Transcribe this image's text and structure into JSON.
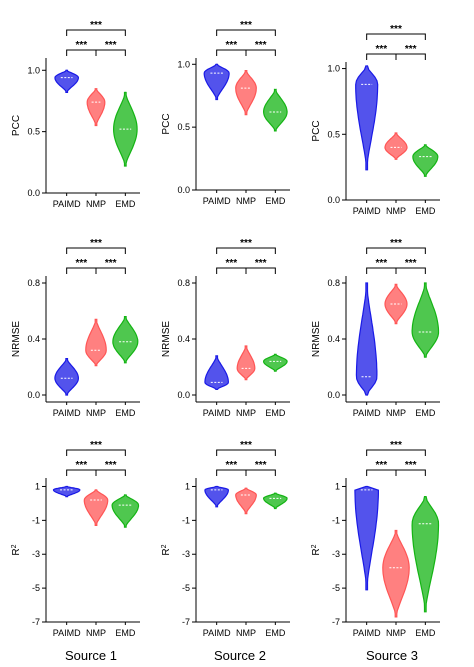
{
  "colors": {
    "PAIMD": "#1a1ae6",
    "NMP": "#ff5555",
    "EMD": "#14b414",
    "axis": "#000000"
  },
  "column_titles": [
    "Source 1",
    "Source 2",
    "Source 3"
  ],
  "chart_data": [
    {
      "type": "violin",
      "source": "Source 1",
      "ylabel": "PCC",
      "ylim": [
        0.0,
        1.1
      ],
      "yticks": [
        "0.0",
        "0.5",
        "1.0"
      ],
      "categories": [
        "PAIMD",
        "NMP",
        "EMD"
      ],
      "violins": [
        {
          "min": 0.82,
          "max": 1.0,
          "median": 0.94,
          "width": 0.8
        },
        {
          "min": 0.55,
          "max": 0.85,
          "median": 0.74,
          "width": 0.6
        },
        {
          "min": 0.22,
          "max": 0.82,
          "median": 0.52,
          "width": 0.8
        }
      ],
      "significance": [
        {
          "pair": [
            "PAIMD",
            "EMD"
          ],
          "label": "***"
        },
        {
          "pair": [
            "PAIMD",
            "NMP"
          ],
          "label": "***"
        },
        {
          "pair": [
            "NMP",
            "EMD"
          ],
          "label": "***"
        }
      ]
    },
    {
      "type": "violin",
      "source": "Source 2",
      "ylabel": "PCC",
      "ylim": [
        0.0,
        1.05
      ],
      "yticks": [
        "0.0",
        "0.5",
        "1.0"
      ],
      "categories": [
        "PAIMD",
        "NMP",
        "EMD"
      ],
      "violins": [
        {
          "min": 0.72,
          "max": 1.0,
          "median": 0.93,
          "width": 0.85
        },
        {
          "min": 0.6,
          "max": 0.95,
          "median": 0.81,
          "width": 0.7
        },
        {
          "min": 0.47,
          "max": 0.8,
          "median": 0.62,
          "width": 0.8
        }
      ],
      "significance": [
        {
          "pair": [
            "PAIMD",
            "EMD"
          ],
          "label": "***"
        },
        {
          "pair": [
            "PAIMD",
            "NMP"
          ],
          "label": "***"
        },
        {
          "pair": [
            "NMP",
            "EMD"
          ],
          "label": "***"
        }
      ]
    },
    {
      "type": "violin",
      "source": "Source 3",
      "ylabel": "PCC",
      "ylim": [
        0.0,
        1.05
      ],
      "yticks": [
        "0.0",
        "0.5",
        "1.0"
      ],
      "categories": [
        "PAIMD",
        "NMP",
        "EMD"
      ],
      "violins": [
        {
          "min": 0.23,
          "max": 1.02,
          "median": 0.88,
          "width": 0.75
        },
        {
          "min": 0.31,
          "max": 0.51,
          "median": 0.4,
          "width": 0.75
        },
        {
          "min": 0.18,
          "max": 0.42,
          "median": 0.33,
          "width": 0.85
        }
      ],
      "significance": [
        {
          "pair": [
            "PAIMD",
            "EMD"
          ],
          "label": "***"
        },
        {
          "pair": [
            "PAIMD",
            "NMP"
          ],
          "label": "***"
        },
        {
          "pair": [
            "NMP",
            "EMD"
          ],
          "label": "***"
        }
      ]
    },
    {
      "type": "violin",
      "source": "Source 1",
      "ylabel": "NRMSE",
      "ylim": [
        -0.05,
        0.85
      ],
      "yticks": [
        "0.0",
        "0.4",
        "0.8"
      ],
      "categories": [
        "PAIMD",
        "NMP",
        "EMD"
      ],
      "violins": [
        {
          "min": 0.0,
          "max": 0.26,
          "median": 0.12,
          "width": 0.8
        },
        {
          "min": 0.21,
          "max": 0.54,
          "median": 0.32,
          "width": 0.7
        },
        {
          "min": 0.23,
          "max": 0.56,
          "median": 0.38,
          "width": 0.85
        }
      ],
      "significance": [
        {
          "pair": [
            "PAIMD",
            "EMD"
          ],
          "label": "***"
        },
        {
          "pair": [
            "PAIMD",
            "NMP"
          ],
          "label": "***"
        },
        {
          "pair": [
            "NMP",
            "EMD"
          ],
          "label": "***"
        }
      ]
    },
    {
      "type": "violin",
      "source": "Source 2",
      "ylabel": "NRMSE",
      "ylim": [
        -0.05,
        0.85
      ],
      "yticks": [
        "0.0",
        "0.4",
        "0.8"
      ],
      "categories": [
        "PAIMD",
        "NMP",
        "EMD"
      ],
      "violins": [
        {
          "min": 0.04,
          "max": 0.28,
          "median": 0.09,
          "width": 0.8
        },
        {
          "min": 0.11,
          "max": 0.35,
          "median": 0.19,
          "width": 0.6
        },
        {
          "min": 0.17,
          "max": 0.29,
          "median": 0.24,
          "width": 0.8
        }
      ],
      "significance": [
        {
          "pair": [
            "PAIMD",
            "EMD"
          ],
          "label": "***"
        },
        {
          "pair": [
            "PAIMD",
            "NMP"
          ],
          "label": "***"
        },
        {
          "pair": [
            "NMP",
            "EMD"
          ],
          "label": "***"
        }
      ]
    },
    {
      "type": "violin",
      "source": "Source 3",
      "ylabel": "NRMSE",
      "ylim": [
        -0.05,
        0.85
      ],
      "yticks": [
        "0.0",
        "0.4",
        "0.8"
      ],
      "categories": [
        "PAIMD",
        "NMP",
        "EMD"
      ],
      "violins": [
        {
          "min": 0.0,
          "max": 0.8,
          "median": 0.13,
          "width": 0.7
        },
        {
          "min": 0.51,
          "max": 0.79,
          "median": 0.65,
          "width": 0.75
        },
        {
          "min": 0.27,
          "max": 0.8,
          "median": 0.45,
          "width": 0.9
        }
      ],
      "significance": [
        {
          "pair": [
            "PAIMD",
            "EMD"
          ],
          "label": "***"
        },
        {
          "pair": [
            "PAIMD",
            "NMP"
          ],
          "label": "***"
        },
        {
          "pair": [
            "NMP",
            "EMD"
          ],
          "label": "***"
        }
      ]
    },
    {
      "type": "violin",
      "source": "Source 1",
      "ylabel": "R2",
      "ylim": [
        -7,
        1.5
      ],
      "yticks": [
        "1",
        "-1",
        "-3",
        "-5",
        "-7"
      ],
      "categories": [
        "PAIMD",
        "NMP",
        "EMD"
      ],
      "violins": [
        {
          "min": 0.4,
          "max": 1.0,
          "median": 0.8,
          "width": 0.9
        },
        {
          "min": -1.3,
          "max": 0.8,
          "median": 0.2,
          "width": 0.8
        },
        {
          "min": -1.4,
          "max": 0.5,
          "median": -0.1,
          "width": 0.9
        }
      ],
      "significance": [
        {
          "pair": [
            "PAIMD",
            "EMD"
          ],
          "label": "***"
        },
        {
          "pair": [
            "PAIMD",
            "NMP"
          ],
          "label": "***"
        },
        {
          "pair": [
            "NMP",
            "EMD"
          ],
          "label": "***"
        }
      ]
    },
    {
      "type": "violin",
      "source": "Source 2",
      "ylabel": "R2",
      "ylim": [
        -7,
        1.5
      ],
      "yticks": [
        "1",
        "-1",
        "-3",
        "-5",
        "-7"
      ],
      "categories": [
        "PAIMD",
        "NMP",
        "EMD"
      ],
      "violins": [
        {
          "min": -0.2,
          "max": 1.0,
          "median": 0.8,
          "width": 0.8
        },
        {
          "min": -0.6,
          "max": 0.9,
          "median": 0.5,
          "width": 0.7
        },
        {
          "min": -0.3,
          "max": 0.6,
          "median": 0.3,
          "width": 0.8
        }
      ],
      "significance": [
        {
          "pair": [
            "PAIMD",
            "EMD"
          ],
          "label": "***"
        },
        {
          "pair": [
            "PAIMD",
            "NMP"
          ],
          "label": "***"
        },
        {
          "pair": [
            "NMP",
            "EMD"
          ],
          "label": "***"
        }
      ]
    },
    {
      "type": "violin",
      "source": "Source 3",
      "ylabel": "R2",
      "ylim": [
        -7,
        1.5
      ],
      "yticks": [
        "1",
        "-1",
        "-3",
        "-5",
        "-7"
      ],
      "categories": [
        "PAIMD",
        "NMP",
        "EMD"
      ],
      "violins": [
        {
          "min": -5.1,
          "max": 1.0,
          "median": 0.8,
          "width": 0.8
        },
        {
          "min": -6.7,
          "max": -1.6,
          "median": -3.8,
          "width": 0.9
        },
        {
          "min": -6.4,
          "max": 0.4,
          "median": -1.2,
          "width": 0.9
        }
      ],
      "significance": [
        {
          "pair": [
            "PAIMD",
            "EMD"
          ],
          "label": "***"
        },
        {
          "pair": [
            "PAIMD",
            "NMP"
          ],
          "label": "***"
        },
        {
          "pair": [
            "NMP",
            "EMD"
          ],
          "label": "***"
        }
      ]
    }
  ]
}
